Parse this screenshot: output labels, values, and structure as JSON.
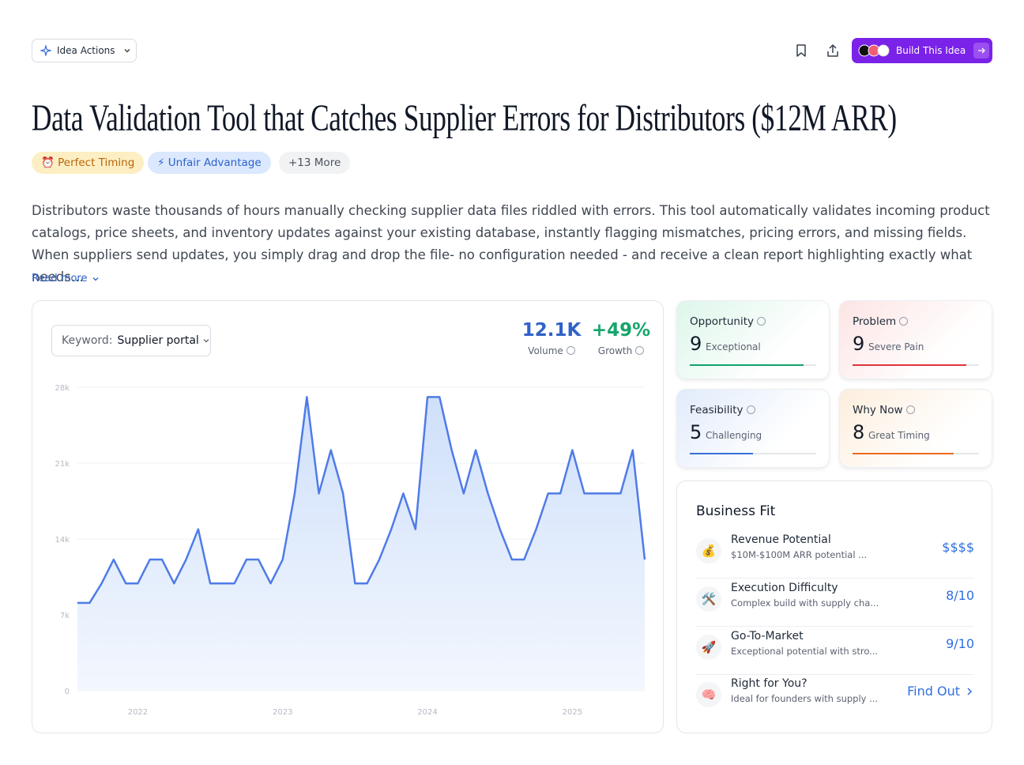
{
  "header": {
    "actions_button": "Idea Actions",
    "build_button": "Build This Idea"
  },
  "title": "Data Validation Tool that Catches Supplier Errors for Distributors ($12M ARR)",
  "tags": [
    "⏰ Perfect Timing",
    "⚡ Unfair Advantage",
    "+13 More"
  ],
  "description": "Distributors waste thousands of hours manually checking supplier data files riddled with errors. This tool automatically validates incoming product catalogs, price sheets, and inventory updates against your existing database, instantly flagging mismatches, pricing errors, and missing fields. When suppliers send updates, you simply drag and drop the file- no configuration needed - and receive a clean report highlighting exactly what needs...",
  "read_more": "Read more",
  "trend": {
    "keyword_label": "Keyword:",
    "keyword": "Supplier portal",
    "volume": "12.1K",
    "volume_label": "Volume",
    "growth": "+49%",
    "growth_label": "Growth",
    "chart_data": {
      "type": "area",
      "x": [
        2021.583,
        2021.667,
        2021.75,
        2021.833,
        2021.917,
        2022,
        2022.083,
        2022.167,
        2022.25,
        2022.333,
        2022.417,
        2022.5,
        2022.583,
        2022.667,
        2022.75,
        2022.833,
        2022.917,
        2023,
        2023.083,
        2023.167,
        2023.25,
        2023.333,
        2023.417,
        2023.5,
        2023.583,
        2023.667,
        2023.75,
        2023.833,
        2023.917,
        2024,
        2024.083,
        2024.167,
        2024.25,
        2024.333,
        2024.417,
        2024.5,
        2024.583,
        2024.667,
        2024.75,
        2024.833,
        2024.917,
        2025,
        2025.083,
        2025.167,
        2025.25,
        2025.333,
        2025.417,
        2025.5
      ],
      "values": [
        8100,
        8100,
        9900,
        12100,
        9900,
        9900,
        12100,
        12100,
        9900,
        12100,
        14900,
        9900,
        9900,
        9900,
        12100,
        12100,
        9900,
        12100,
        18200,
        27100,
        18200,
        22200,
        18200,
        9900,
        9900,
        12100,
        14900,
        18200,
        14900,
        27100,
        27100,
        22200,
        18200,
        22200,
        18200,
        14900,
        12100,
        12100,
        14900,
        18200,
        18200,
        22200,
        18200,
        18200,
        18200,
        18200,
        22200,
        12100
      ],
      "color": "#4f7be8",
      "xlim": [
        2021.583,
        2025.5
      ],
      "xticks": [
        2022,
        2023,
        2024,
        2025
      ],
      "ylim": [
        0,
        28000
      ],
      "yticks": [
        0,
        {
          "value": 7000,
          "label": "7k"
        },
        {
          "value": 14000,
          "label": "14k"
        },
        {
          "value": 21000,
          "label": "21k"
        },
        {
          "value": 28000,
          "label": "28k"
        }
      ],
      "grid": true
    }
  },
  "score_range": [
    0,
    10
  ],
  "scores": [
    {
      "name": "Opportunity",
      "score": 9,
      "label": "Exceptional",
      "color": "#10a36a"
    },
    {
      "name": "Problem",
      "score": 9,
      "label": "Severe Pain",
      "color": "#e0333d"
    },
    {
      "name": "Feasibility",
      "score": 5,
      "label": "Challenging",
      "color": "#3a6fd8"
    },
    {
      "name": "Why Now",
      "score": 8,
      "label": "Great Timing",
      "color": "#ee6a1c"
    }
  ],
  "business_fit": {
    "title": "Business Fit",
    "rows": [
      {
        "icon": "💰",
        "name": "Revenue Potential",
        "detail": "$10M-$100M ARR potential ...",
        "value": "$$$$"
      },
      {
        "icon": "🛠️",
        "name": "Execution Difficulty",
        "detail": "Complex build with supply cha...",
        "value": "8/10"
      },
      {
        "icon": "🚀",
        "name": "Go-To-Market",
        "detail": "Exceptional potential with stro...",
        "value": "9/10"
      },
      {
        "icon": "🧠",
        "name": "Right for You?",
        "detail": "Ideal for founders with supply ...",
        "value": "Find Out"
      }
    ]
  }
}
